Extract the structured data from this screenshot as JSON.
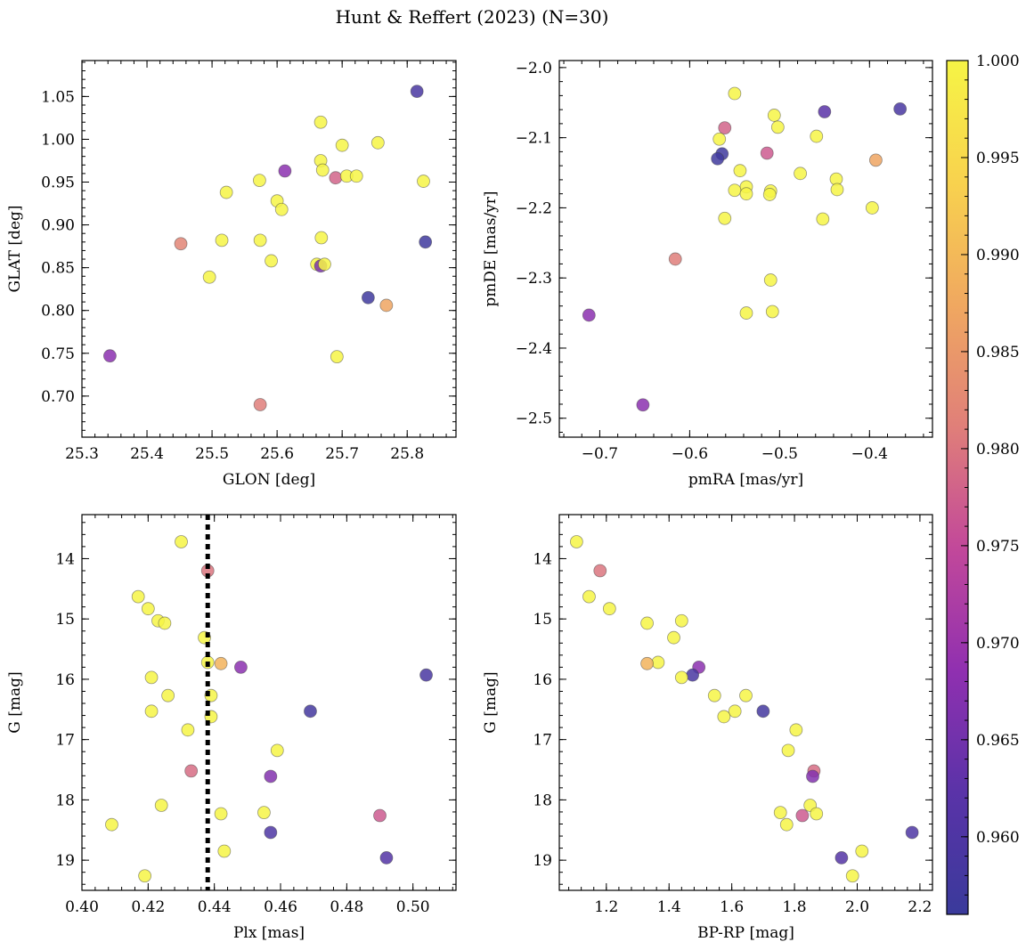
{
  "title": "Hunt & Reffert (2023) (N=30)",
  "colorbar": {
    "vmin": 0.956,
    "vmax": 1.0,
    "ticks": [
      0.96,
      0.965,
      0.97,
      0.975,
      0.98,
      0.985,
      0.99,
      0.995,
      1.0
    ],
    "tick_labels": [
      "0.960",
      "0.965",
      "0.970",
      "0.975",
      "0.980",
      "0.985",
      "0.990",
      "0.995",
      "1.000"
    ],
    "stops": [
      "#3a3a9b",
      "#5a33a8",
      "#9030b0",
      "#c2489a",
      "#e07f79",
      "#f0a860",
      "#f8d24e",
      "#f6f445"
    ]
  },
  "chart_data": [
    {
      "type": "scatter",
      "id": "glon-glat",
      "xlabel": "GLON [deg]",
      "ylabel": "GLAT [deg]",
      "xlim": [
        25.3,
        25.875
      ],
      "ylim": [
        0.652,
        1.092
      ],
      "xticks": [
        25.3,
        25.4,
        25.5,
        25.6,
        25.7,
        25.8
      ],
      "xtick_labels": [
        "25.3",
        "25.4",
        "25.5",
        "25.6",
        "25.7",
        "25.8"
      ],
      "yticks": [
        0.7,
        0.75,
        0.8,
        0.85,
        0.9,
        0.95,
        1.0,
        1.05
      ],
      "ytick_labels": [
        "0.70",
        "0.75",
        "0.80",
        "0.85",
        "0.90",
        "0.95",
        "1.00",
        "1.05"
      ],
      "x_minor": 0.02,
      "y_minor": 0.01,
      "points": [
        [
          25.815,
          1.056,
          0.959
        ],
        [
          25.667,
          1.02,
          1.0
        ],
        [
          25.7,
          0.993,
          1.0
        ],
        [
          25.755,
          0.996,
          1.0
        ],
        [
          25.667,
          0.975,
          1.0
        ],
        [
          25.67,
          0.964,
          1.0
        ],
        [
          25.612,
          0.963,
          0.968
        ],
        [
          25.69,
          0.955,
          0.978
        ],
        [
          25.707,
          0.957,
          1.0
        ],
        [
          25.722,
          0.957,
          1.0
        ],
        [
          25.825,
          0.951,
          1.0
        ],
        [
          25.573,
          0.952,
          1.0
        ],
        [
          25.522,
          0.938,
          1.0
        ],
        [
          25.6,
          0.928,
          1.0
        ],
        [
          25.607,
          0.918,
          1.0
        ],
        [
          25.668,
          0.885,
          1.0
        ],
        [
          25.515,
          0.882,
          1.0
        ],
        [
          25.574,
          0.882,
          1.0
        ],
        [
          25.452,
          0.878,
          0.982
        ],
        [
          25.828,
          0.88,
          0.957
        ],
        [
          25.591,
          0.858,
          1.0
        ],
        [
          25.661,
          0.854,
          1.0
        ],
        [
          25.667,
          0.852,
          0.966
        ],
        [
          25.673,
          0.854,
          1.0
        ],
        [
          25.496,
          0.839,
          1.0
        ],
        [
          25.74,
          0.815,
          0.957
        ],
        [
          25.768,
          0.806,
          0.987
        ],
        [
          25.343,
          0.747,
          0.968
        ],
        [
          25.692,
          0.746,
          1.0
        ],
        [
          25.574,
          0.69,
          0.981
        ]
      ]
    },
    {
      "type": "scatter",
      "id": "pmra-pmde",
      "xlabel": "pmRA [mas/yr]",
      "ylabel": "pmDE [mas/yr]",
      "xlim": [
        -0.745,
        -0.33
      ],
      "ylim": [
        -2.527,
        -1.99
      ],
      "xticks": [
        -0.7,
        -0.6,
        -0.5,
        -0.4
      ],
      "xtick_labels": [
        "−0.7",
        "−0.6",
        "−0.5",
        "−0.4"
      ],
      "yticks": [
        -2.5,
        -2.4,
        -2.3,
        -2.2,
        -2.1,
        -2.0
      ],
      "ytick_labels": [
        "−2.5",
        "−2.4",
        "−2.3",
        "−2.2",
        "−2.1",
        "−2.0"
      ],
      "x_minor": 0.02,
      "y_minor": 0.02,
      "points": [
        [
          -0.55,
          -2.037,
          1.0
        ],
        [
          -0.366,
          -2.059,
          0.959
        ],
        [
          -0.45,
          -2.063,
          0.962
        ],
        [
          -0.506,
          -2.068,
          1.0
        ],
        [
          -0.502,
          -2.085,
          1.0
        ],
        [
          -0.561,
          -2.086,
          0.978
        ],
        [
          -0.459,
          -2.098,
          1.0
        ],
        [
          -0.567,
          -2.102,
          1.0
        ],
        [
          -0.514,
          -2.122,
          0.977
        ],
        [
          -0.564,
          -2.123,
          0.957
        ],
        [
          -0.569,
          -2.13,
          0.957
        ],
        [
          -0.393,
          -2.132,
          0.987
        ],
        [
          -0.544,
          -2.147,
          1.0
        ],
        [
          -0.477,
          -2.151,
          1.0
        ],
        [
          -0.437,
          -2.159,
          1.0
        ],
        [
          -0.537,
          -2.17,
          1.0
        ],
        [
          -0.55,
          -2.175,
          1.0
        ],
        [
          -0.51,
          -2.176,
          1.0
        ],
        [
          -0.436,
          -2.174,
          1.0
        ],
        [
          -0.537,
          -2.18,
          1.0
        ],
        [
          -0.511,
          -2.181,
          1.0
        ],
        [
          -0.397,
          -2.2,
          1.0
        ],
        [
          -0.561,
          -2.215,
          1.0
        ],
        [
          -0.452,
          -2.216,
          1.0
        ],
        [
          -0.616,
          -2.273,
          0.981
        ],
        [
          -0.51,
          -2.303,
          1.0
        ],
        [
          -0.537,
          -2.35,
          1.0
        ],
        [
          -0.508,
          -2.348,
          1.0
        ],
        [
          -0.712,
          -2.353,
          0.968
        ],
        [
          -0.652,
          -2.481,
          0.968
        ]
      ]
    },
    {
      "type": "scatter",
      "id": "plx-g",
      "xlabel": "Plx [mas]",
      "ylabel": "G [mag]",
      "xlim": [
        0.4,
        0.513
      ],
      "ylim": [
        19.5,
        13.27
      ],
      "xticks": [
        0.4,
        0.42,
        0.44,
        0.46,
        0.48,
        0.5
      ],
      "xtick_labels": [
        "0.40",
        "0.42",
        "0.44",
        "0.46",
        "0.48",
        "0.50"
      ],
      "yticks": [
        14,
        15,
        16,
        17,
        18,
        19
      ],
      "ytick_labels": [
        "14",
        "15",
        "16",
        "17",
        "18",
        "19"
      ],
      "x_minor": 0.004,
      "y_minor": 0.2,
      "refline_x": 0.438,
      "points": [
        [
          0.43,
          13.72,
          1.0
        ],
        [
          0.438,
          14.2,
          0.98
        ],
        [
          0.417,
          14.63,
          1.0
        ],
        [
          0.42,
          14.83,
          1.0
        ],
        [
          0.423,
          15.03,
          1.0
        ],
        [
          0.425,
          15.07,
          1.0
        ],
        [
          0.437,
          15.31,
          1.0
        ],
        [
          0.438,
          15.72,
          1.0
        ],
        [
          0.442,
          15.74,
          0.989
        ],
        [
          0.448,
          15.8,
          0.968
        ],
        [
          0.504,
          15.93,
          0.959
        ],
        [
          0.421,
          15.97,
          1.0
        ],
        [
          0.426,
          16.27,
          1.0
        ],
        [
          0.439,
          16.27,
          1.0
        ],
        [
          0.421,
          16.53,
          1.0
        ],
        [
          0.469,
          16.53,
          0.958
        ],
        [
          0.439,
          16.62,
          1.0
        ],
        [
          0.432,
          16.84,
          1.0
        ],
        [
          0.459,
          17.18,
          1.0
        ],
        [
          0.433,
          17.52,
          0.979
        ],
        [
          0.457,
          17.61,
          0.967
        ],
        [
          0.424,
          18.09,
          1.0
        ],
        [
          0.455,
          18.21,
          1.0
        ],
        [
          0.442,
          18.23,
          1.0
        ],
        [
          0.49,
          18.26,
          0.977
        ],
        [
          0.409,
          18.41,
          1.0
        ],
        [
          0.457,
          18.54,
          0.96
        ],
        [
          0.443,
          18.85,
          1.0
        ],
        [
          0.492,
          18.96,
          0.961
        ],
        [
          0.419,
          19.26,
          1.0
        ]
      ]
    },
    {
      "type": "scatter",
      "id": "bprp-g",
      "xlabel": "BP-RP [mag]",
      "ylabel": "G [mag]",
      "xlim": [
        1.05,
        2.24
      ],
      "ylim": [
        19.5,
        13.27
      ],
      "xticks": [
        1.2,
        1.4,
        1.6,
        1.8,
        2.0,
        2.2
      ],
      "xtick_labels": [
        "1.2",
        "1.4",
        "1.6",
        "1.8",
        "2.0",
        "2.2"
      ],
      "yticks": [
        14,
        15,
        16,
        17,
        18,
        19
      ],
      "ytick_labels": [
        "14",
        "15",
        "16",
        "17",
        "18",
        "19"
      ],
      "x_minor": 0.04,
      "y_minor": 0.2,
      "points": [
        [
          1.105,
          13.72,
          1.0
        ],
        [
          1.18,
          14.2,
          0.98
        ],
        [
          1.145,
          14.63,
          1.0
        ],
        [
          1.21,
          14.83,
          1.0
        ],
        [
          1.44,
          15.03,
          1.0
        ],
        [
          1.33,
          15.07,
          1.0
        ],
        [
          1.415,
          15.31,
          1.0
        ],
        [
          1.365,
          15.72,
          1.0
        ],
        [
          1.33,
          15.74,
          0.989
        ],
        [
          1.495,
          15.8,
          0.968
        ],
        [
          1.475,
          15.93,
          0.959
        ],
        [
          1.44,
          15.97,
          1.0
        ],
        [
          1.545,
          16.27,
          1.0
        ],
        [
          1.645,
          16.27,
          1.0
        ],
        [
          1.61,
          16.53,
          1.0
        ],
        [
          1.7,
          16.53,
          0.958
        ],
        [
          1.575,
          16.62,
          1.0
        ],
        [
          1.805,
          16.84,
          1.0
        ],
        [
          1.78,
          17.18,
          1.0
        ],
        [
          1.862,
          17.52,
          0.979
        ],
        [
          1.858,
          17.61,
          0.967
        ],
        [
          1.85,
          18.09,
          1.0
        ],
        [
          1.755,
          18.21,
          1.0
        ],
        [
          1.87,
          18.23,
          1.0
        ],
        [
          1.825,
          18.26,
          0.977
        ],
        [
          1.775,
          18.41,
          1.0
        ],
        [
          2.175,
          18.54,
          0.96
        ],
        [
          2.015,
          18.85,
          1.0
        ],
        [
          1.95,
          18.96,
          0.961
        ],
        [
          1.985,
          19.26,
          1.0
        ]
      ]
    }
  ]
}
